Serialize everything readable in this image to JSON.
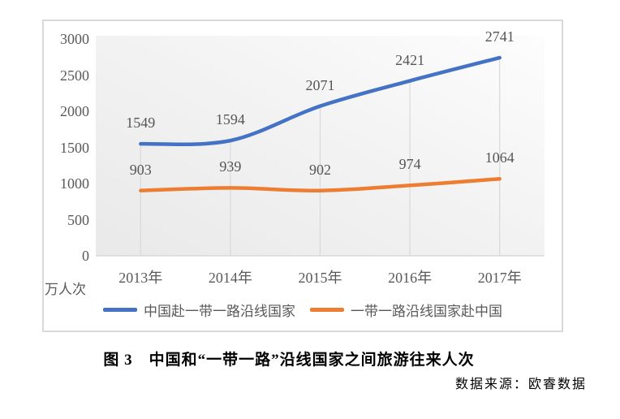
{
  "chart_data": {
    "type": "line",
    "categories": [
      "2013年",
      "2014年",
      "2015年",
      "2016年",
      "2017年"
    ],
    "series": [
      {
        "name": "中国赴一带一路沿线国家",
        "color": "#4472C4",
        "values": [
          1549,
          1594,
          2071,
          2421,
          2741
        ]
      },
      {
        "name": "一带一路沿线国家赴中国",
        "color": "#ED7D31",
        "values": [
          903,
          939,
          902,
          974,
          1064
        ]
      }
    ],
    "unit_label": "万人次",
    "y_axis": {
      "min": 0,
      "max": 3000,
      "step": 500,
      "ticks": [
        3000,
        2500,
        2000,
        1500,
        1000,
        500,
        0
      ]
    },
    "grid": "vertical-drop-lines-from-top-series",
    "legend_position": "bottom",
    "data_labels": true,
    "smooth_lines": true,
    "colors": {
      "axis_text": "#595959",
      "grid_line": "#d9d9d9",
      "border": "#d9d9d9"
    }
  },
  "caption": {
    "text": "图 3　中国和“一带一路”沿线国家之间旅游往来人次"
  },
  "source": {
    "text": "数据来源：欧睿数据"
  }
}
